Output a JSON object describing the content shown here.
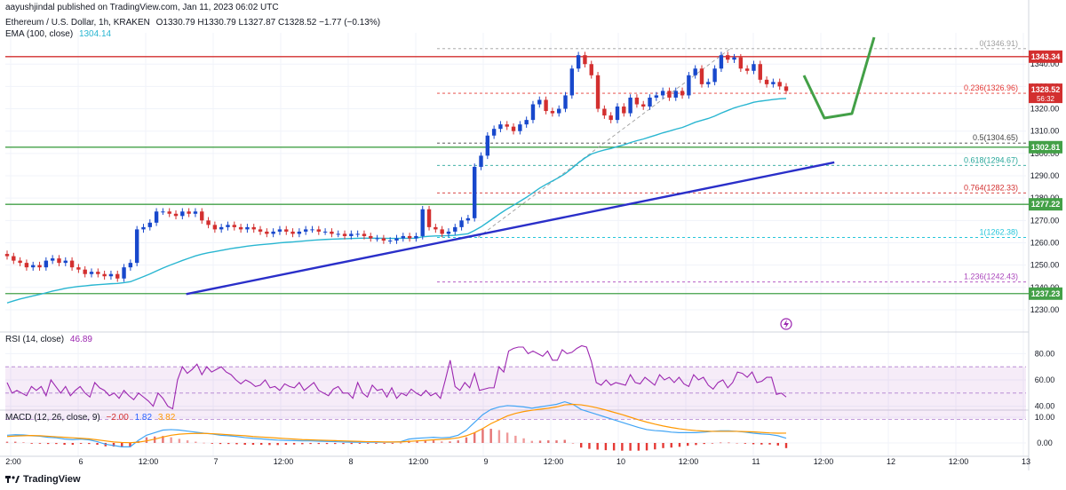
{
  "header": {
    "published": "aayushjindal published on TradingView.com, Jan 11, 2023 06:02 UTC",
    "symbol": "Ethereum / U.S. Dollar, 1h, KRAKEN",
    "ohlc": "O1330.79 H1330.79 L1327.87 C1328.52 −1.77 (−0.13%)",
    "ema_label": "EMA (100, close)",
    "ema_value": "1304.14"
  },
  "footer": {
    "brand": "TradingView",
    "logo_icon": "tradingview-logo-icon"
  },
  "colors": {
    "up": "#1848cc",
    "down": "#d32f2f",
    "ema": "#29b6d1",
    "trend": "#2a2fc9",
    "green": "#43a047",
    "rsi": "#9c27b0",
    "macd": "#42a5f5",
    "signal": "#ff9800"
  },
  "chart_data": [
    {
      "type": "candlestick",
      "title": "Ethereum / U.S. Dollar, 1h, KRAKEN",
      "ylim": [
        1228,
        1354
      ],
      "y_ticks": [
        1230,
        1240,
        1250,
        1260,
        1270,
        1280,
        1290,
        1300,
        1310,
        1320,
        1330,
        1340
      ],
      "x_ticks": [
        "2:00",
        "6",
        "12:00",
        "7",
        "12:00",
        "8",
        "12:00",
        "9",
        "12:00",
        "10",
        "12:00",
        "11",
        "12:00",
        "12",
        "12:00",
        "13"
      ],
      "candles_close": [
        1254,
        1252,
        1251,
        1249,
        1250,
        1249,
        1252,
        1253,
        1251,
        1252,
        1249,
        1248,
        1246,
        1247,
        1246,
        1245,
        1246,
        1244,
        1249,
        1251,
        1266,
        1267,
        1269,
        1274,
        1274,
        1273,
        1272,
        1274,
        1273,
        1274,
        1270,
        1268,
        1266,
        1267,
        1268,
        1267,
        1266,
        1267,
        1266,
        1265,
        1264,
        1265,
        1266,
        1265,
        1264,
        1265,
        1266,
        1266,
        1265,
        1265,
        1264,
        1264,
        1263,
        1264,
        1264,
        1263,
        1262,
        1262,
        1261,
        1261,
        1262,
        1263,
        1262,
        1263,
        1275,
        1267,
        1266,
        1264,
        1265,
        1267,
        1270,
        1271,
        1294,
        1299,
        1308,
        1311,
        1313,
        1312,
        1310,
        1313,
        1315,
        1322,
        1324,
        1319,
        1318,
        1320,
        1326,
        1338,
        1344,
        1340,
        1335,
        1320,
        1317,
        1315,
        1321,
        1318,
        1325,
        1322,
        1321,
        1325,
        1326,
        1328,
        1325,
        1328,
        1326,
        1335,
        1338,
        1331,
        1332,
        1338,
        1344,
        1342,
        1343,
        1338,
        1337,
        1340,
        1333,
        1331,
        1332,
        1330,
        1328
      ],
      "ema": {
        "name": "EMA (100, close)",
        "last": 1304.14
      },
      "price_labels": [
        {
          "value": 1343.34,
          "text": "1343.34",
          "color": "#d32f2f"
        },
        {
          "value": 1328.52,
          "text": "1328.52",
          "sub": "56:32",
          "color": "#d32f2f"
        },
        {
          "value": 1302.81,
          "text": "1302.81",
          "color": "#43a047"
        },
        {
          "value": 1277.22,
          "text": "1277.22",
          "color": "#43a047"
        },
        {
          "value": 1237.23,
          "text": "1237.23",
          "color": "#43a047"
        }
      ],
      "horizontal_lines": [
        {
          "value": 1343.34,
          "color": "#d32f2f"
        },
        {
          "value": 1302.81,
          "color": "#43a047"
        },
        {
          "value": 1277.22,
          "color": "#43a047"
        },
        {
          "value": 1237.23,
          "color": "#43a047"
        }
      ],
      "fibonacci": [
        {
          "level": "0",
          "value": 1346.91,
          "text": "0(1346.91)",
          "color": "#9e9e9e"
        },
        {
          "level": "0.236",
          "value": 1326.96,
          "text": "0.236(1326.96)",
          "color": "#e53935"
        },
        {
          "level": "0.5",
          "value": 1304.65,
          "text": "0.5(1304.65)",
          "color": "#424242"
        },
        {
          "level": "0.618",
          "value": 1294.67,
          "text": "0.618(1294.67)",
          "color": "#26a69a"
        },
        {
          "level": "0.764",
          "value": 1282.33,
          "text": "0.764(1282.33)",
          "color": "#d32f2f"
        },
        {
          "level": "1",
          "value": 1262.38,
          "text": "1(1262.38)",
          "color": "#26c6da"
        },
        {
          "level": "1.236",
          "value": 1242.43,
          "text": "1.236(1242.43)",
          "color": "#ab47bc"
        }
      ],
      "trendline": {
        "from": [
          6.8,
          1237
        ],
        "to": [
          11.6,
          1296
        ]
      }
    },
    {
      "type": "line",
      "title": "RSI (14, close)",
      "name": "RSI (14, close)",
      "last": "46.89",
      "ylim": [
        20,
        95
      ],
      "y_ticks": [
        40,
        60,
        80
      ],
      "band": [
        30,
        70
      ],
      "values": [
        58,
        50,
        52,
        50,
        48,
        55,
        52,
        55,
        48,
        60,
        55,
        50,
        55,
        48,
        52,
        55,
        50,
        47,
        58,
        54,
        52,
        48,
        50,
        46,
        52,
        48,
        45,
        50,
        47,
        44,
        40,
        50,
        46,
        40,
        38,
        60,
        70,
        65,
        68,
        72,
        64,
        70,
        66,
        68,
        70,
        66,
        64,
        60,
        57,
        60,
        58,
        55,
        56,
        60,
        54,
        55,
        52,
        57,
        55,
        54,
        58,
        52,
        55,
        58,
        52,
        50,
        48,
        53,
        55,
        50,
        50,
        46,
        58,
        50,
        47,
        56,
        52,
        53,
        47,
        54,
        46,
        50,
        48,
        53,
        50,
        48,
        52,
        48,
        50,
        46,
        60,
        75,
        55,
        52,
        58,
        54,
        65,
        52,
        53,
        54,
        54,
        70,
        66,
        82,
        84,
        85,
        85,
        80,
        82,
        80,
        78,
        82,
        75,
        75,
        83,
        80,
        81,
        84,
        86,
        85,
        74,
        58,
        56,
        60,
        56,
        58,
        57,
        56,
        64,
        58,
        57,
        62,
        59,
        56,
        64,
        60,
        62,
        58,
        62,
        57,
        55,
        64,
        60,
        62,
        56,
        53,
        58,
        60,
        54,
        58,
        66,
        65,
        62,
        66,
        58,
        59,
        62,
        62,
        49,
        50,
        47
      ]
    },
    {
      "type": "bar",
      "title": "MACD (12, 26, close, 9)",
      "name": "MACD (12, 26, close, 9)",
      "values_text": [
        "−2.00",
        "1.82",
        "3.82"
      ],
      "ylim": [
        -4,
        16
      ],
      "y_ticks": [
        0,
        10
      ],
      "macd": [
        3,
        3.2,
        3.1,
        2.8,
        2.6,
        2.2,
        2,
        1.5,
        1.3,
        1.5,
        1.2,
        0.5,
        -0.5,
        -1,
        -1.5,
        -1.5,
        1,
        3,
        4,
        5,
        5.2,
        5,
        4.6,
        4.2,
        3.8,
        3.5,
        3,
        2.8,
        2.5,
        2.1,
        1.8,
        1.6,
        1.3,
        1.1,
        1,
        0.9,
        0.8,
        0.8,
        0.7,
        0.6,
        0.5,
        0.4,
        0.3,
        0.3,
        0.3,
        0.3,
        0.3,
        0.3,
        0.5,
        1.5,
        1.8,
        2,
        2.2,
        2,
        2.2,
        3,
        5,
        8,
        11,
        13,
        14,
        14.5,
        14.3,
        14,
        13.5,
        14,
        14.5,
        15,
        16,
        15,
        13,
        12,
        11,
        10,
        9,
        8,
        7,
        6,
        5.2,
        4.8,
        4.6,
        4.2,
        4,
        4,
        4,
        4.2,
        4.5,
        4.7,
        4.7,
        4.5,
        4.2,
        3.8,
        3.5,
        3.3,
        2.8,
        1.82
      ],
      "signal": [
        2.5,
        2.7,
        2.8,
        2.9,
        2.8,
        2.6,
        2.4,
        2.2,
        2,
        1.8,
        1.6,
        1.2,
        0.8,
        0.4,
        0.2,
        0.1,
        0.3,
        0.8,
        1.5,
        2.3,
        3,
        3.4,
        3.6,
        3.7,
        3.7,
        3.6,
        3.4,
        3.2,
        3,
        2.8,
        2.5,
        2.3,
        2.1,
        1.9,
        1.7,
        1.5,
        1.3,
        1.2,
        1.1,
        1,
        0.9,
        0.8,
        0.7,
        0.6,
        0.5,
        0.5,
        0.4,
        0.4,
        0.4,
        0.6,
        0.8,
        1,
        1.2,
        1.4,
        1.6,
        2,
        2.8,
        4,
        5.6,
        7.5,
        9,
        10.5,
        11.5,
        12.2,
        12.7,
        13.1,
        13.5,
        14,
        14.8,
        15,
        14.8,
        14.3,
        13.6,
        12.8,
        11.9,
        11,
        10,
        9,
        8.1,
        7.3,
        6.6,
        6,
        5.5,
        5.1,
        4.8,
        4.6,
        4.5,
        4.5,
        4.5,
        4.5,
        4.4,
        4.3,
        4.1,
        3.9,
        3.8,
        3.82
      ]
    }
  ]
}
